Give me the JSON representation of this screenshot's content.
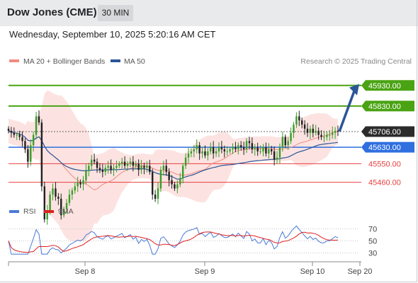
{
  "header": {
    "title": "Dow Jones (CME)",
    "timeframe": "30 MIN",
    "datetime": "Wednesday, September 10, 2025 5:20:16 AM CET"
  },
  "legend": {
    "bollinger_label": "MA 20 + Bollinger Bands",
    "bollinger_color": "#f28b82",
    "ma50_label": "MA 50",
    "ma50_color": "#2b5597",
    "credit": "Research © 2025 Trading Central"
  },
  "rsi_legend": {
    "rsi_label": "RSI",
    "rsi_color": "#4a7ad8",
    "ma9_label": "9MA",
    "ma9_color": "#e02020"
  },
  "chart_data": [
    {
      "type": "candlestick",
      "x_tick_labels": [
        "Sep 8",
        "Sep 9",
        "Sep 10",
        "Sep 20"
      ],
      "ylim": [
        45160,
        46070
      ],
      "price_levels": [
        {
          "label": "45930.00",
          "value": 45930,
          "kind": "resistance",
          "color": "#4aa312"
        },
        {
          "label": "45830.00",
          "value": 45830,
          "kind": "resistance",
          "color": "#4aa312"
        },
        {
          "label": "45706.00",
          "value": 45706,
          "kind": "last",
          "color": "#2b2b2b"
        },
        {
          "label": "45630.00",
          "value": 45630,
          "kind": "pivot",
          "color": "#2f6fe0"
        },
        {
          "label": "45550.00",
          "value": 45550,
          "kind": "support",
          "color": "#e84040"
        },
        {
          "label": "45460.00",
          "value": 45460,
          "kind": "support",
          "color": "#e84040"
        }
      ],
      "forecast_arrow": {
        "from": 45706,
        "to": 45930
      },
      "close_series": [
        45710,
        45700,
        45690,
        45690,
        45680,
        45660,
        45620,
        45560,
        45640,
        45690,
        45780,
        45750,
        45440,
        45280,
        45320,
        45400,
        45430,
        45390,
        45380,
        45300,
        45330,
        45360,
        45400,
        45420,
        45440,
        45460,
        45450,
        45470,
        45520,
        45540,
        45570,
        45560,
        45530,
        45520,
        45510,
        45530,
        45540,
        45520,
        45530,
        45540,
        45550,
        45560,
        45540,
        45550,
        45560,
        45540,
        45550,
        45520,
        45540,
        45530,
        45540,
        45510,
        45400,
        45380,
        45430,
        45520,
        45540,
        45510,
        45470,
        45450,
        45430,
        45450,
        45480,
        45540,
        45580,
        45600,
        45610,
        45620,
        45640,
        45600,
        45610,
        45590,
        45610,
        45630,
        45600,
        45610,
        45630,
        45620,
        45610,
        45610,
        45620,
        45630,
        45620,
        45640,
        45630,
        45620,
        45660,
        45650,
        45620,
        45630,
        45610,
        45610,
        45630,
        45600,
        45620,
        45610,
        45570,
        45580,
        45630,
        45680,
        45640,
        45660,
        45700,
        45740,
        45780,
        45760,
        45740,
        45720,
        45700,
        45720,
        45700,
        45710,
        45690,
        45680,
        45680,
        45690,
        45690,
        45700,
        45710,
        45706
      ]
    },
    {
      "type": "line",
      "ylim": [
        20,
        80
      ],
      "y_tick_labels": [
        "70",
        "50",
        "30"
      ],
      "y_ticks": [
        70,
        50,
        30
      ]
    }
  ]
}
